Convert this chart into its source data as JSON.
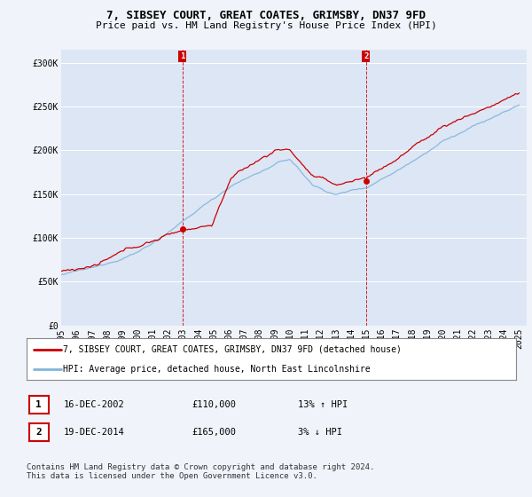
{
  "title": "7, SIBSEY COURT, GREAT COATES, GRIMSBY, DN37 9FD",
  "subtitle": "Price paid vs. HM Land Registry's House Price Index (HPI)",
  "ylabel_ticks": [
    "£0",
    "£50K",
    "£100K",
    "£150K",
    "£200K",
    "£250K",
    "£300K"
  ],
  "ytick_values": [
    0,
    50000,
    100000,
    150000,
    200000,
    250000,
    300000
  ],
  "ylim": [
    0,
    315000
  ],
  "xlim": [
    1995,
    2025.5
  ],
  "background_color": "#f0f4fa",
  "plot_bg_color": "#dce6f5",
  "grid_color": "#ffffff",
  "hpi_color": "#82b4d8",
  "price_color": "#cc0000",
  "vline_color": "#cc0000",
  "legend_label_price": "7, SIBSEY COURT, GREAT COATES, GRIMSBY, DN37 9FD (detached house)",
  "legend_label_hpi": "HPI: Average price, detached house, North East Lincolnshire",
  "table_rows": [
    {
      "num": "1",
      "date": "16-DEC-2002",
      "price": "£110,000",
      "hpi": "13% ↑ HPI"
    },
    {
      "num": "2",
      "date": "19-DEC-2014",
      "price": "£165,000",
      "hpi": "3% ↓ HPI"
    }
  ],
  "footer": "Contains HM Land Registry data © Crown copyright and database right 2024.\nThis data is licensed under the Open Government Licence v3.0.",
  "title_fontsize": 9,
  "subtitle_fontsize": 8,
  "tick_fontsize": 7,
  "legend_fontsize": 7,
  "table_fontsize": 7.5,
  "footer_fontsize": 6.5,
  "purchase1_year": 2002.96,
  "purchase1_price": 110000,
  "purchase2_year": 2014.96,
  "purchase2_price": 165000
}
